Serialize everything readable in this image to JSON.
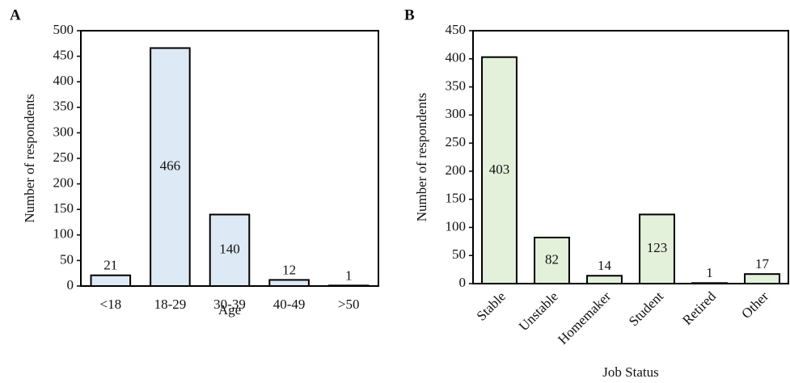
{
  "chart_data": [
    {
      "type": "bar",
      "panel_label": "A",
      "xlabel": "Age",
      "ylabel": "Number of respondents",
      "categories": [
        "<18",
        "18-29",
        "30-39",
        "40-49",
        ">50"
      ],
      "values": [
        21,
        466,
        140,
        12,
        1
      ],
      "color": "#dde9f5",
      "ylim": [
        0,
        500
      ],
      "yticks": [
        0,
        50,
        100,
        150,
        200,
        250,
        300,
        350,
        400,
        450,
        500
      ],
      "x_label_rotation": 0
    },
    {
      "type": "bar",
      "panel_label": "B",
      "xlabel": "Job Status",
      "ylabel": "Number of respondents",
      "categories": [
        "Stable",
        "Unstable",
        "Homemaker",
        "Student",
        "Retired",
        "Other"
      ],
      "values": [
        403,
        82,
        14,
        123,
        1,
        17
      ],
      "color": "#e3f0da",
      "ylim": [
        0,
        450
      ],
      "yticks": [
        0,
        50,
        100,
        150,
        200,
        250,
        300,
        350,
        400,
        450
      ],
      "x_label_rotation": -45
    }
  ]
}
